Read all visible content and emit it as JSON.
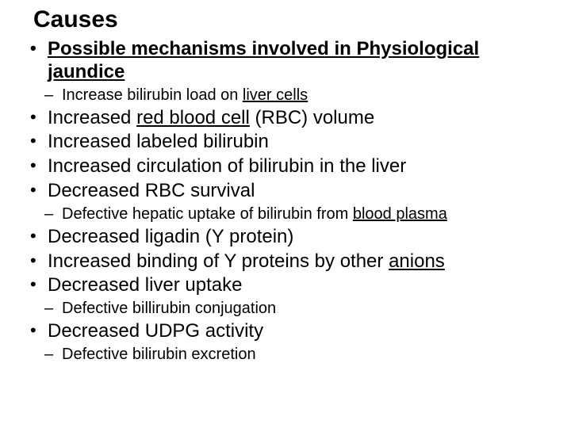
{
  "title": "Causes",
  "heading_line1": "Possible mechanisms involved in Physiological",
  "heading_line2": "jaundice",
  "sub1_prefix": "Increase bilirubin load on ",
  "sub1_link": "liver cells",
  "b1_prefix": "Increased ",
  "b1_link": "red blood cell",
  "b1_suffix": " (RBC) volume",
  "b2": "Increased labeled bilirubin",
  "b3": "Increased circulation of bilirubin in the liver",
  "b4": "Decreased RBC survival",
  "sub2_prefix": "Defective hepatic uptake of bilirubin from ",
  "sub2_link": "blood plasma",
  "b5": "Decreased ligadin (Y protein)",
  "b6_prefix": "Increased binding of Y proteins by other ",
  "b6_link": "anions",
  "b7": "Decreased liver uptake",
  "sub3": "Defective billirubin conjugation",
  "b8": "Decreased UDPG activity",
  "sub4": "Defective bilirubin excretion"
}
